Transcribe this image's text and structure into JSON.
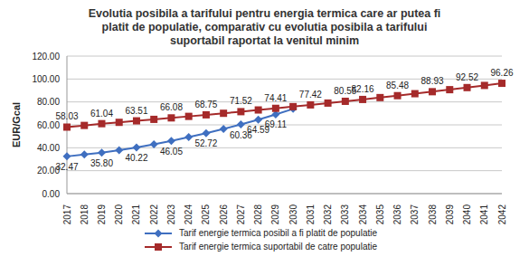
{
  "chart_data": {
    "type": "line",
    "title": "Evolutia posibila a tarifului pentru energia termica care ar putea fi platit de populatie, comparativ cu evolutia posibila a tarifului suportabil raportat la venitul minim",
    "y_label": "EUR/Gcal",
    "categories": [
      "2017",
      "2018",
      "2019",
      "2020",
      "2021",
      "2022",
      "2023",
      "2024",
      "2025",
      "2026",
      "2027",
      "2028",
      "2029",
      "2030",
      "2031",
      "2032",
      "2033",
      "2034",
      "2035",
      "2036",
      "2037",
      "2038",
      "2039",
      "2040",
      "2041",
      "2042"
    ],
    "series": [
      {
        "name": "Tarif energie termica posibil a fi platit de populatie",
        "color": "#3F6FC0",
        "marker": "diamond",
        "values": [
          32.47,
          34.1,
          35.8,
          37.9,
          40.22,
          43.0,
          46.05,
          49.3,
          52.72,
          56.4,
          60.36,
          64.59,
          69.11,
          73.95,
          null,
          null,
          null,
          null,
          null,
          null,
          null,
          null,
          null,
          null,
          null,
          null
        ],
        "value_labels": [
          "32.47",
          null,
          "35.80",
          null,
          "40.22",
          null,
          "46.05",
          null,
          "52.72",
          null,
          "60.36",
          "64.59",
          "69.11",
          null,
          null,
          null,
          null,
          null,
          null,
          null,
          null,
          null,
          null,
          null,
          null,
          null
        ]
      },
      {
        "name": "Tarif energie termica suportabil de catre populatie",
        "color": "#A52A2A",
        "marker": "square",
        "values": [
          58.03,
          59.5,
          61.04,
          62.2,
          63.51,
          64.8,
          66.08,
          67.4,
          68.75,
          70.1,
          71.52,
          73.0,
          74.41,
          75.9,
          77.42,
          79.0,
          80.55,
          82.16,
          83.8,
          85.48,
          87.2,
          88.93,
          90.7,
          92.52,
          94.4,
          96.26
        ],
        "value_labels": [
          "58.03",
          null,
          "61.04",
          null,
          "63.51",
          null,
          "66.08",
          null,
          "68.75",
          null,
          "71.52",
          null,
          "74.41",
          null,
          "77.42",
          null,
          "80.55",
          "82.16",
          null,
          "85.48",
          null,
          "88.93",
          null,
          "92.52",
          null,
          "96.26"
        ]
      }
    ],
    "ylim": [
      0,
      120
    ],
    "yticks": [
      {
        "value": 0,
        "label": "0.00"
      },
      {
        "value": 20,
        "label": "20.00"
      },
      {
        "value": 40,
        "label": "40.00"
      },
      {
        "value": 60,
        "label": "60.00"
      },
      {
        "value": 80,
        "label": "80.00"
      },
      {
        "value": 100,
        "label": "100.00"
      },
      {
        "value": 120,
        "label": "120.00"
      }
    ],
    "grid": true,
    "data_labels": true,
    "legend": "bottom"
  }
}
